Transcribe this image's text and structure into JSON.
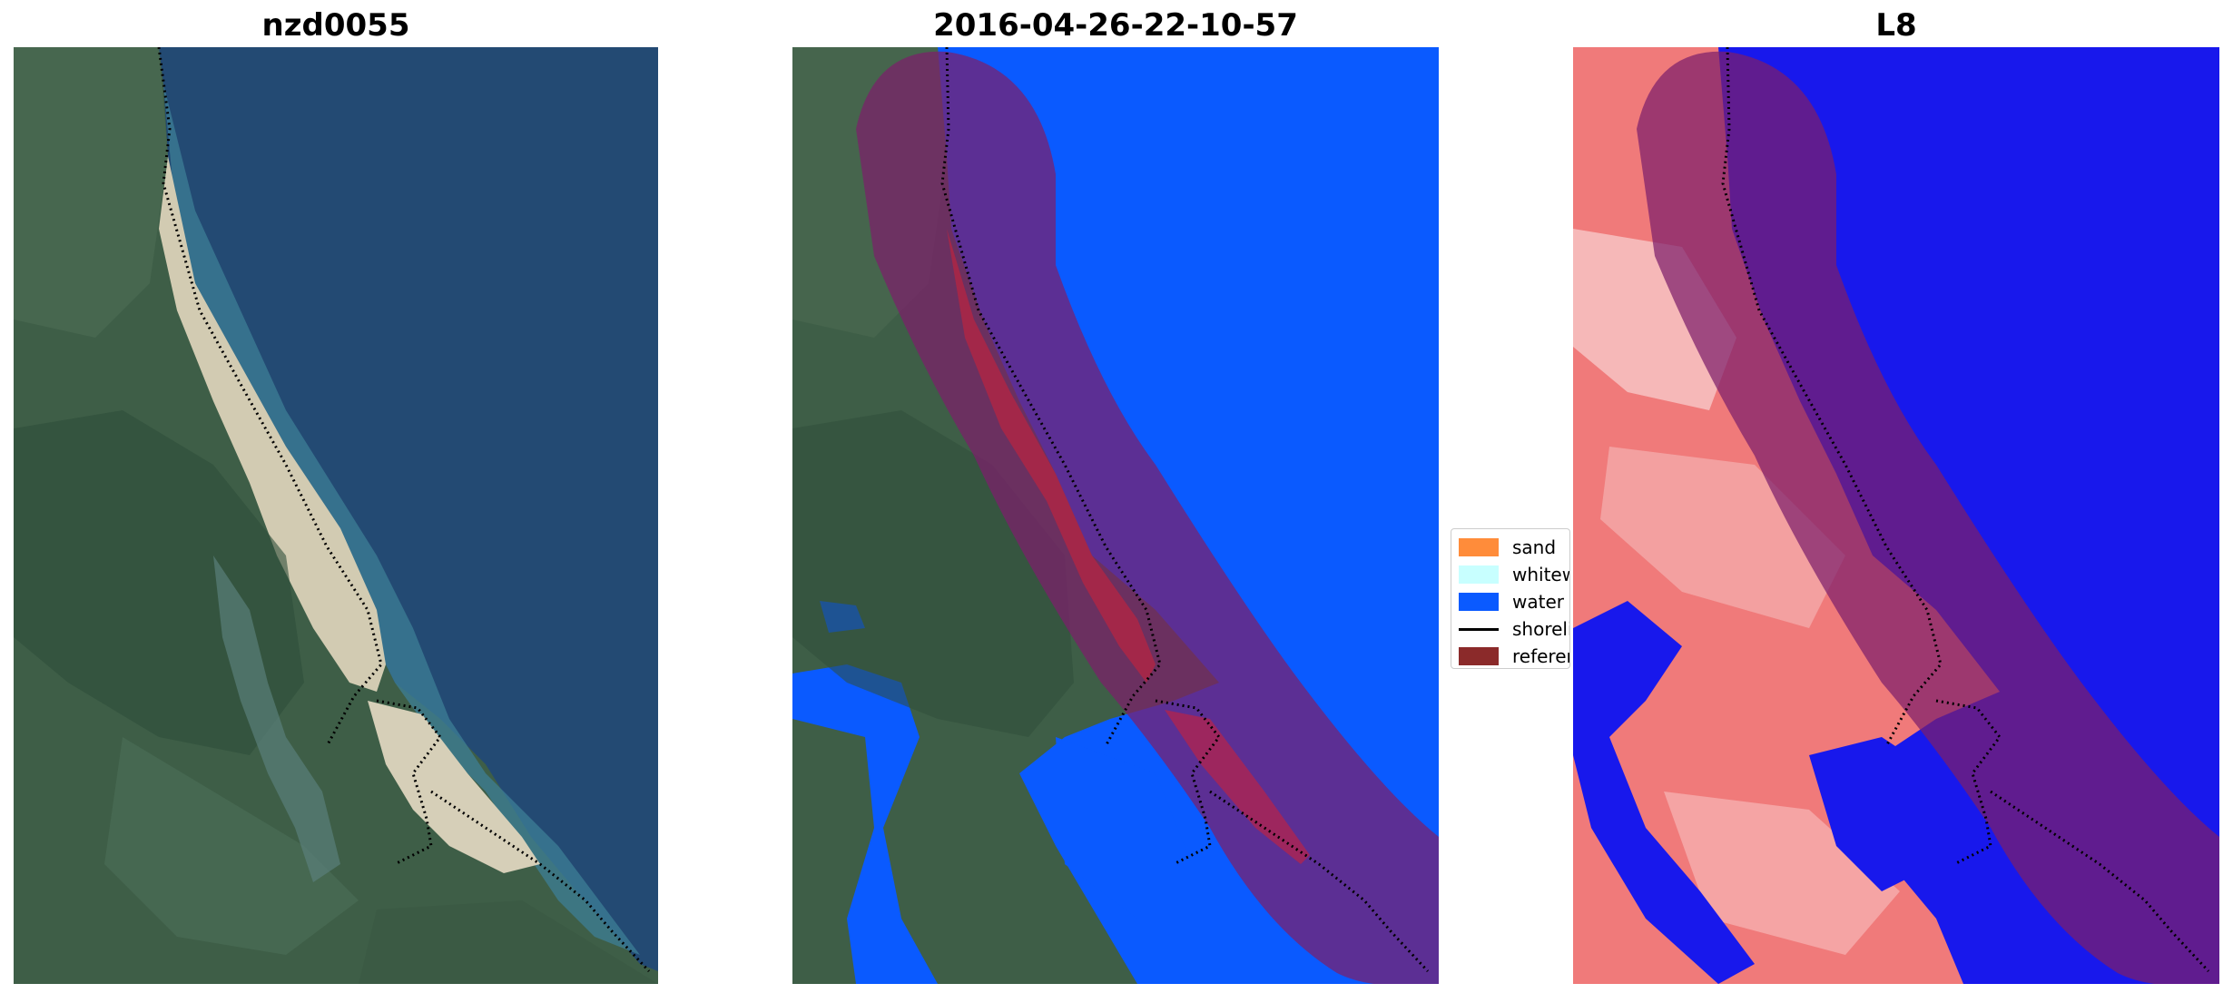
{
  "panels": [
    {
      "title": "nzd0055"
    },
    {
      "title": "2016-04-26-22-10-57"
    },
    {
      "title": "L8"
    }
  ],
  "legend": {
    "items": [
      {
        "label": "sand",
        "color": "#ff8c3a"
      },
      {
        "label": "whitewater",
        "color": "#c8ffff"
      },
      {
        "label": "water",
        "color": "#0a5aff"
      },
      {
        "label": "shoreline",
        "color": "#000000"
      },
      {
        "label": "reference shoreline buffer",
        "color": "#8b2a2a"
      }
    ]
  },
  "colors": {
    "sea_rgb": "#244a74",
    "land_rgb": "#3f5f48",
    "sand_rgb": "#d8d0b8",
    "water_class": "#0a5aff",
    "buffer_overlay": "#8b1f3f",
    "index_water": "#1010f0",
    "index_land": "#f07070"
  }
}
